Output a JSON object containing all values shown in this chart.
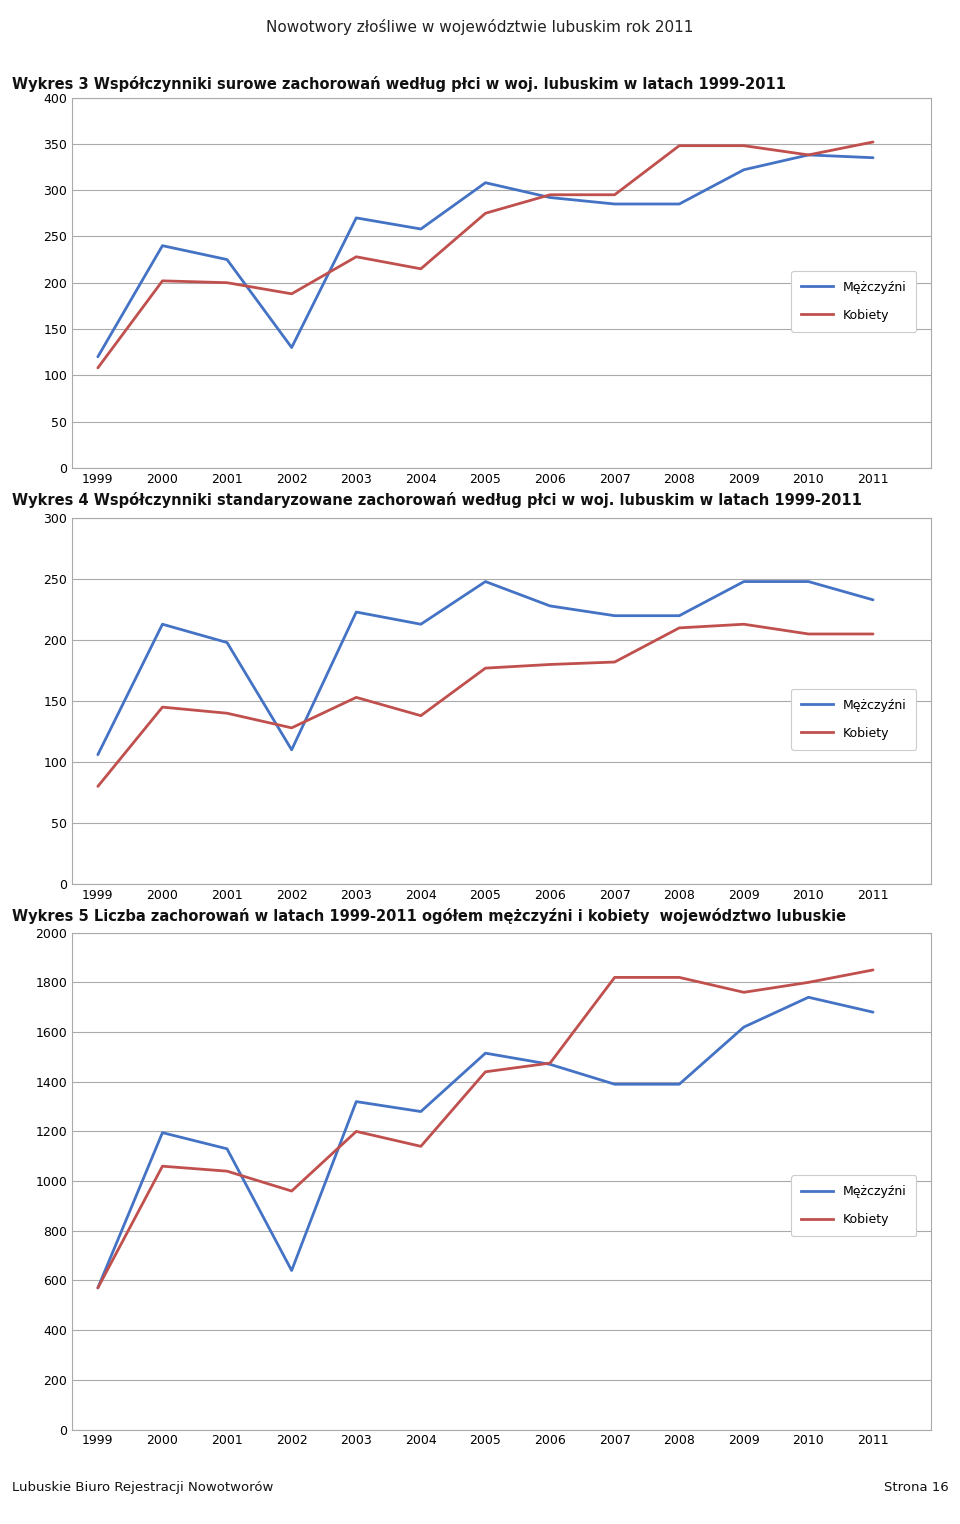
{
  "page_title": "Nowotwory złośliwe w województwie lubuskim rok 2011",
  "footer_left": "Lubuskie Biuro Rejestracji Nowotworów",
  "footer_right": "Strona 16",
  "header_bar_color": "#7B2020",
  "years": [
    1999,
    2000,
    2001,
    2002,
    2003,
    2004,
    2005,
    2006,
    2007,
    2008,
    2009,
    2010,
    2011
  ],
  "chart1": {
    "title": "Wykres 3 Współczynniki surowe zachorowań według płci w woj. lubuskim w latach 1999-2011",
    "men": [
      120,
      240,
      225,
      130,
      270,
      258,
      308,
      292,
      285,
      285,
      322,
      338,
      335
    ],
    "women": [
      108,
      202,
      200,
      188,
      228,
      215,
      275,
      295,
      295,
      348,
      348,
      338,
      352
    ],
    "ylim": [
      0,
      400
    ],
    "yticks": [
      0,
      50,
      100,
      150,
      200,
      250,
      300,
      350,
      400
    ],
    "men_color": "#4472C4",
    "women_color": "#C0504D"
  },
  "chart2": {
    "title": "Wykres 4 Współczynniki standaryzowane zachorowań według płci w woj. lubuskim w latach 1999-2011",
    "men": [
      106,
      213,
      198,
      110,
      223,
      213,
      248,
      228,
      220,
      220,
      248,
      248,
      233
    ],
    "women": [
      80,
      145,
      140,
      128,
      153,
      138,
      177,
      180,
      182,
      210,
      213,
      205,
      205
    ],
    "ylim": [
      0,
      300
    ],
    "yticks": [
      0,
      50,
      100,
      150,
      200,
      250,
      300
    ],
    "men_color": "#4472C4",
    "women_color": "#C0504D"
  },
  "chart3": {
    "title": "Wykres 5 Liczba zachorowań w latach 1999-2011 ogółem mężczyźni i kobiety  województwo lubuskie",
    "men": [
      570,
      1195,
      1130,
      640,
      1320,
      1280,
      1515,
      1470,
      1390,
      1390,
      1620,
      1740,
      1680
    ],
    "women": [
      570,
      1060,
      1040,
      960,
      1200,
      1140,
      1440,
      1475,
      1820,
      1820,
      1760,
      1800,
      1850
    ],
    "ylim": [
      0,
      2000
    ],
    "yticks": [
      0,
      200,
      400,
      600,
      800,
      1000,
      1200,
      1400,
      1600,
      1800,
      2000
    ],
    "men_color": "#4472C4",
    "women_color": "#C0504D"
  },
  "legend_men": "Mężczyźni",
  "legend_women": "Kobiety",
  "bg_color": "#FFFFFF",
  "plot_bg_color": "#FFFFFF",
  "grid_color": "#AAAAAA",
  "line_width": 2.0,
  "chart_title_fontsize": 10.5,
  "axis_fontsize": 9,
  "legend_fontsize": 9,
  "page_title_fontsize": 11
}
